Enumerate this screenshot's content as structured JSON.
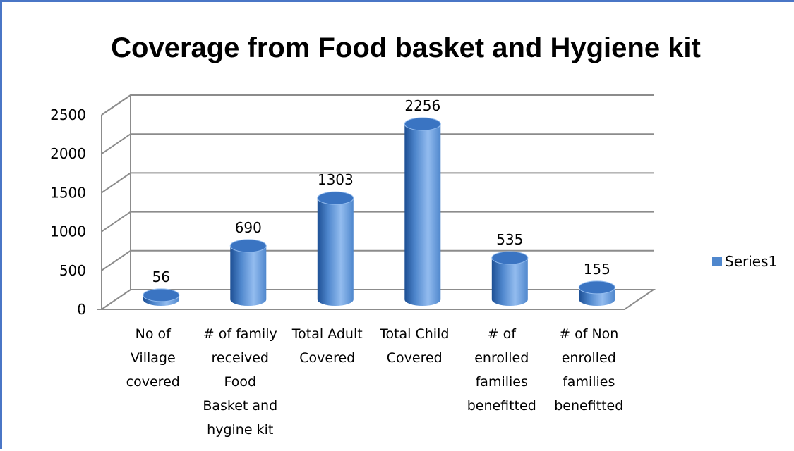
{
  "chart_data": {
    "type": "bar",
    "title": "Coverage from Food basket and Hygiene kit",
    "categories": [
      "No of Village covered",
      "# of family received Food Basket and hygine kit",
      "Total Adult Covered",
      "Total Child Covered",
      "# of enrolled families benefitted",
      "# of Non enrolled families benefitted"
    ],
    "category_lines": [
      [
        "No of",
        "Village",
        "covered"
      ],
      [
        "# of family",
        "received",
        "Food",
        "Basket and",
        "hygine kit"
      ],
      [
        "Total Adult",
        "Covered"
      ],
      [
        "Total Child",
        "Covered"
      ],
      [
        "# of",
        "enrolled",
        "families",
        "benefitted"
      ],
      [
        "# of Non",
        "enrolled",
        "families",
        "benefitted"
      ]
    ],
    "series": [
      {
        "name": "Series1",
        "values": [
          56,
          690,
          1303,
          2256,
          535,
          155
        ]
      }
    ],
    "data_labels": [
      "56",
      "690",
      "1303",
      "2256",
      "535",
      "155"
    ],
    "yticks": [
      "0",
      "500",
      "1000",
      "1500",
      "2000",
      "2500"
    ],
    "ylim": [
      0,
      2500
    ],
    "xlabel": "",
    "ylabel": "",
    "grid": true,
    "style": "3d-cylinder",
    "legend_position": "right",
    "colors": {
      "bar": "#4f87cd",
      "bar_dark": "#1d4f94",
      "bar_light": "#93bcef",
      "bar_top": "#3a74c2",
      "grid": "#8c8c8c",
      "frame": "#4a76c6"
    }
  }
}
